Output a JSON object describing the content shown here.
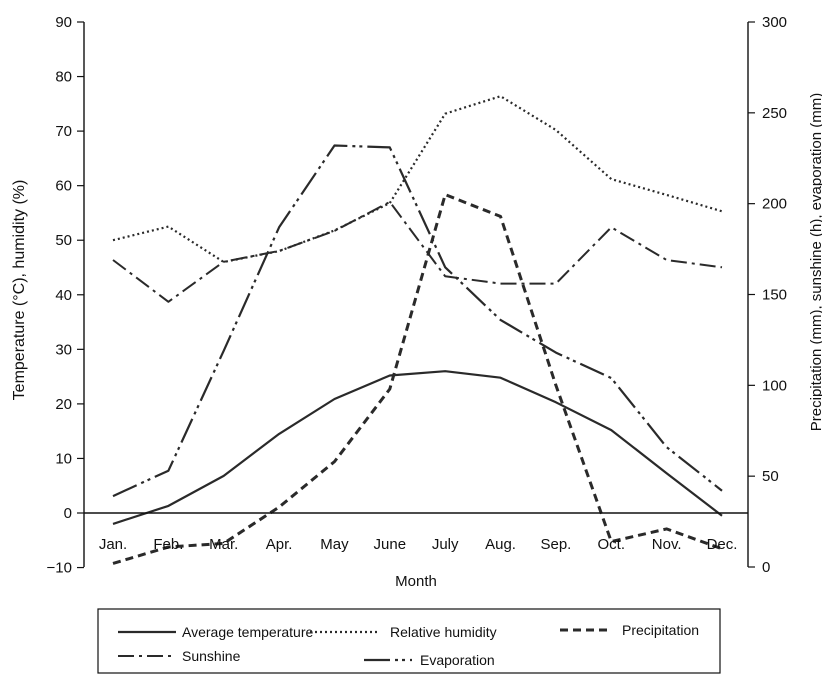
{
  "chart_data": {
    "type": "line",
    "categories": [
      "Jan.",
      "Feb.",
      "Mar.",
      "Apr.",
      "May",
      "June",
      "July",
      "Aug.",
      "Sep.",
      "Oct.",
      "Nov.",
      "Dec."
    ],
    "xlabel": "Month",
    "ylabel_left": "Temperature (°C), humidity (%)",
    "ylabel_right": "Precipitation (mm), sunshine (h), evaporation (mm)",
    "ylim_left": [
      -10,
      90
    ],
    "ylim_right": [
      0,
      300
    ],
    "yticks_left": [
      "90",
      "80",
      "70",
      "60",
      "50",
      "40",
      "30",
      "20",
      "10",
      "0",
      "−10"
    ],
    "yticks_right": [
      "300",
      "250",
      "200",
      "150",
      "100",
      "50",
      "0"
    ],
    "grid": false,
    "legend_position": "bottom",
    "series": [
      {
        "name": "Average temperature",
        "axis": "left",
        "style": "solid",
        "values": [
          -2,
          1.3,
          6.8,
          14.5,
          20.9,
          25.2,
          26.0,
          24.8,
          20.3,
          15.2,
          7.3,
          -0.5
        ]
      },
      {
        "name": "Relative humidity",
        "axis": "left",
        "style": "dotted",
        "values": [
          50,
          52.5,
          46,
          48,
          51.8,
          56.8,
          73.2,
          76.4,
          70.2,
          61.2,
          58.3,
          55.3
        ]
      },
      {
        "name": "Precipitation",
        "axis": "right",
        "style": "dashed",
        "values": [
          2,
          11,
          13,
          33,
          58,
          98,
          205,
          193,
          100,
          14,
          21,
          10
        ]
      },
      {
        "name": "Sunshine",
        "axis": "right",
        "style": "dashdot",
        "values": [
          169,
          146,
          168,
          174,
          185,
          201,
          160,
          156,
          156,
          187,
          169,
          165
        ]
      },
      {
        "name": "Evaporation",
        "axis": "right",
        "style": "longdashdotdot",
        "values": [
          39,
          53,
          119,
          187,
          232,
          231,
          165,
          136,
          118,
          104,
          66,
          42
        ]
      }
    ]
  }
}
